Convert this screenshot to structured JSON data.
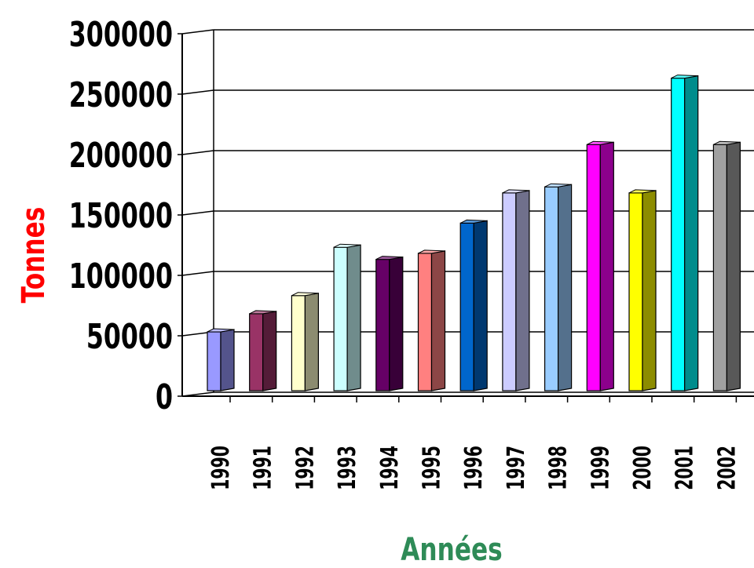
{
  "chart_data": {
    "type": "bar",
    "title": "",
    "xlabel": "Années",
    "ylabel": "Tonnes",
    "ylim": [
      0,
      300000
    ],
    "yticks": [
      0,
      50000,
      100000,
      150000,
      200000,
      250000,
      300000
    ],
    "ytick_labels": [
      "0",
      "50000",
      "100000",
      "150000",
      "200000",
      "250000",
      "300000"
    ],
    "grid": true,
    "legend": "none",
    "categories": [
      "1990",
      "1991",
      "1992",
      "1993",
      "1994",
      "1995",
      "1996",
      "1997",
      "1998",
      "1999",
      "2000",
      "2001",
      "2002"
    ],
    "values": [
      50000,
      65000,
      80000,
      120000,
      110000,
      115000,
      140000,
      165000,
      170000,
      205000,
      165000,
      260000,
      205000
    ],
    "colors": [
      "#9999ff",
      "#993366",
      "#ffffcc",
      "#ccffff",
      "#660066",
      "#ff8080",
      "#0066cc",
      "#ccccff",
      "#99ccff",
      "#ff00ff",
      "#ffff00",
      "#00ffff",
      "#a0a0a0"
    ],
    "ylabel_color": "#ff0000",
    "xlabel_color": "#2e8b57"
  }
}
